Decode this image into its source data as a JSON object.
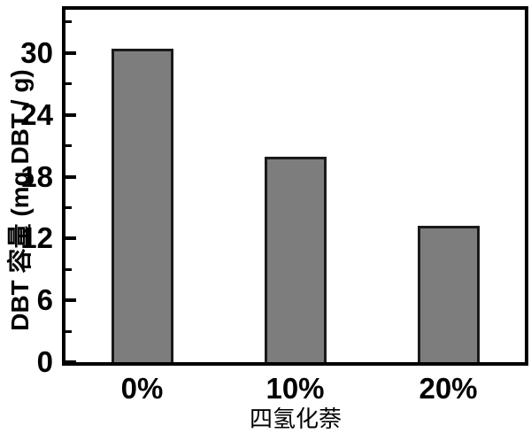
{
  "chart_data": {
    "type": "bar",
    "categories": [
      "0%",
      "10%",
      "20%"
    ],
    "values": [
      30.4,
      19.9,
      13.2
    ],
    "title": "",
    "xlabel": "四氢化萘",
    "ylabel": "DBT 容量 (mg DBT / g)",
    "ylim": [
      0,
      34.2
    ],
    "y_major_ticks": [
      0,
      6,
      12,
      18,
      24,
      30
    ],
    "y_minor_ticks": [
      3,
      9,
      15,
      21,
      27,
      33
    ],
    "bar_fill_color": "#7d7d7d",
    "bar_border_color": "#1a1a1a",
    "axis_color": "#000000",
    "grid": false,
    "legend_position": "none",
    "tick_direction": "in"
  }
}
